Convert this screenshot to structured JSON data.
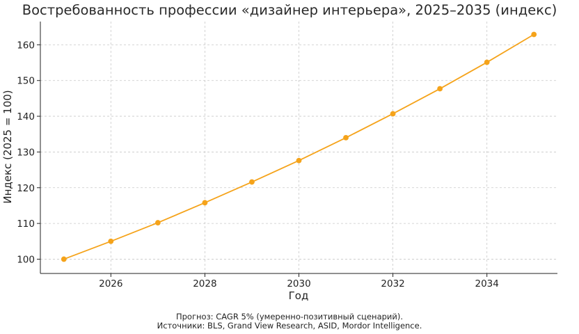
{
  "chart_data": {
    "type": "line",
    "title": "Востребованность профессии «дизайнер интерьера», 2025–2035 (индекс)",
    "xlabel": "Год",
    "ylabel": "Индекс (2025 = 100)",
    "x": [
      2025,
      2026,
      2027,
      2028,
      2029,
      2030,
      2031,
      2032,
      2033,
      2034,
      2035
    ],
    "series": [
      {
        "values": [
          100,
          105.0,
          110.2,
          115.8,
          121.6,
          127.6,
          134.0,
          140.7,
          147.7,
          155.1,
          162.9
        ],
        "color": "#f5a31a"
      }
    ],
    "xlim": [
      2024.5,
      2035.5
    ],
    "ylim": [
      96,
      166.5
    ],
    "xticks": [
      2026,
      2028,
      2030,
      2032,
      2034
    ],
    "yticks": [
      100,
      110,
      120,
      130,
      140,
      150,
      160
    ],
    "grid": true,
    "legend": "none",
    "caption_lines": [
      "Прогноз: CAGR 5% (умеренно-позитивный сценарий).",
      "Источники: BLS, Grand View Research, ASID, Mordor Intelligence."
    ]
  }
}
